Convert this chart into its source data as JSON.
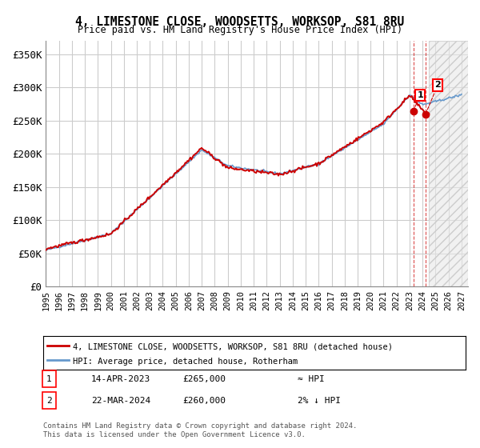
{
  "title": "4, LIMESTONE CLOSE, WOODSETTS, WORKSOP, S81 8RU",
  "subtitle": "Price paid vs. HM Land Registry's House Price Index (HPI)",
  "ylabel": "",
  "xlim_start": 1995.0,
  "xlim_end": 2027.5,
  "ylim_min": 0,
  "ylim_max": 370000,
  "yticks": [
    0,
    50000,
    100000,
    150000,
    200000,
    250000,
    300000,
    350000
  ],
  "ytick_labels": [
    "£0",
    "£50K",
    "£100K",
    "£150K",
    "£200K",
    "£250K",
    "£300K",
    "£350K"
  ],
  "xticks": [
    1995,
    1996,
    1997,
    1998,
    1999,
    2000,
    2001,
    2002,
    2003,
    2004,
    2005,
    2006,
    2007,
    2008,
    2009,
    2010,
    2011,
    2012,
    2013,
    2014,
    2015,
    2016,
    2017,
    2018,
    2019,
    2020,
    2021,
    2022,
    2023,
    2024,
    2025,
    2026,
    2027
  ],
  "hpi_color": "#6699cc",
  "price_color": "#cc0000",
  "annotation_color": "#cc0000",
  "grid_color": "#cccccc",
  "bg_color": "#ffffff",
  "legend_box_color": "#000000",
  "sale1_date": "14-APR-2023",
  "sale1_price": "£265,000",
  "sale1_rel": "≈ HPI",
  "sale1_year": 2023.29,
  "sale1_value": 265000,
  "sale2_date": "22-MAR-2024",
  "sale2_price": "£260,000",
  "sale2_rel": "2% ↓ HPI",
  "sale2_year": 2024.23,
  "sale2_value": 260000,
  "footer": "Contains HM Land Registry data © Crown copyright and database right 2024.\nThis data is licensed under the Open Government Licence v3.0.",
  "legend_line1": "4, LIMESTONE CLOSE, WOODSETTS, WORKSOP, S81 8RU (detached house)",
  "legend_line2": "HPI: Average price, detached house, Rotherham"
}
